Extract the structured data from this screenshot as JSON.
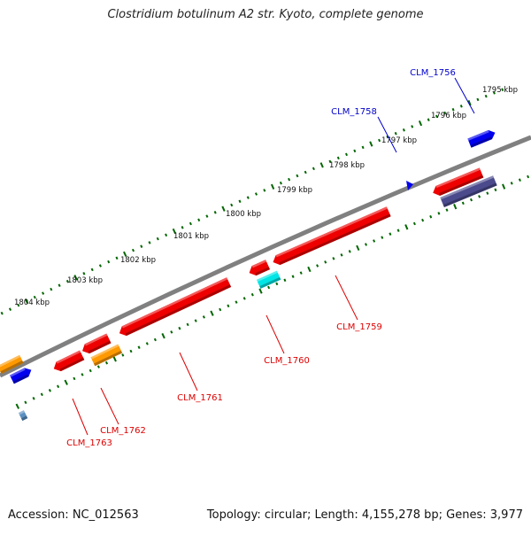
{
  "title": "Clostridium botulinum A2 str. Kyoto, complete genome",
  "footer": {
    "accession": "Accession: NC_012563",
    "summary": "Topology: circular; Length: 4,155,278 bp; Genes: 3,977"
  },
  "kbp_ticks": [
    "1795 kbp",
    "1796 kbp",
    "1797 kbp",
    "1798 kbp",
    "1799 kbp",
    "1800 kbp",
    "1801 kbp",
    "1802 kbp",
    "1803 kbp",
    "1804 kbp"
  ],
  "genes": [
    {
      "label": "CLM_1756",
      "strand": "plus",
      "color": "#0000cc"
    },
    {
      "label": "CLM_1758",
      "strand": "plus",
      "color": "#0000cc"
    },
    {
      "label": "CLM_1759",
      "strand": "minus",
      "color": "#dd0000"
    },
    {
      "label": "CLM_1760",
      "strand": "minus",
      "color": "#dd0000"
    },
    {
      "label": "CLM_1761",
      "strand": "minus",
      "color": "#dd0000"
    },
    {
      "label": "CLM_1762",
      "strand": "minus",
      "color": "#dd0000"
    },
    {
      "label": "CLM_1763",
      "strand": "minus",
      "color": "#dd0000"
    }
  ],
  "colors": {
    "backbone": "#808080",
    "red_feature": "#ee0000",
    "orange_feature": "#ff9900",
    "blue_feature": "#0000ee",
    "cyan_feature": "#00e5e5",
    "slate_feature": "#4a4a8c",
    "tick_green": "#006600"
  }
}
